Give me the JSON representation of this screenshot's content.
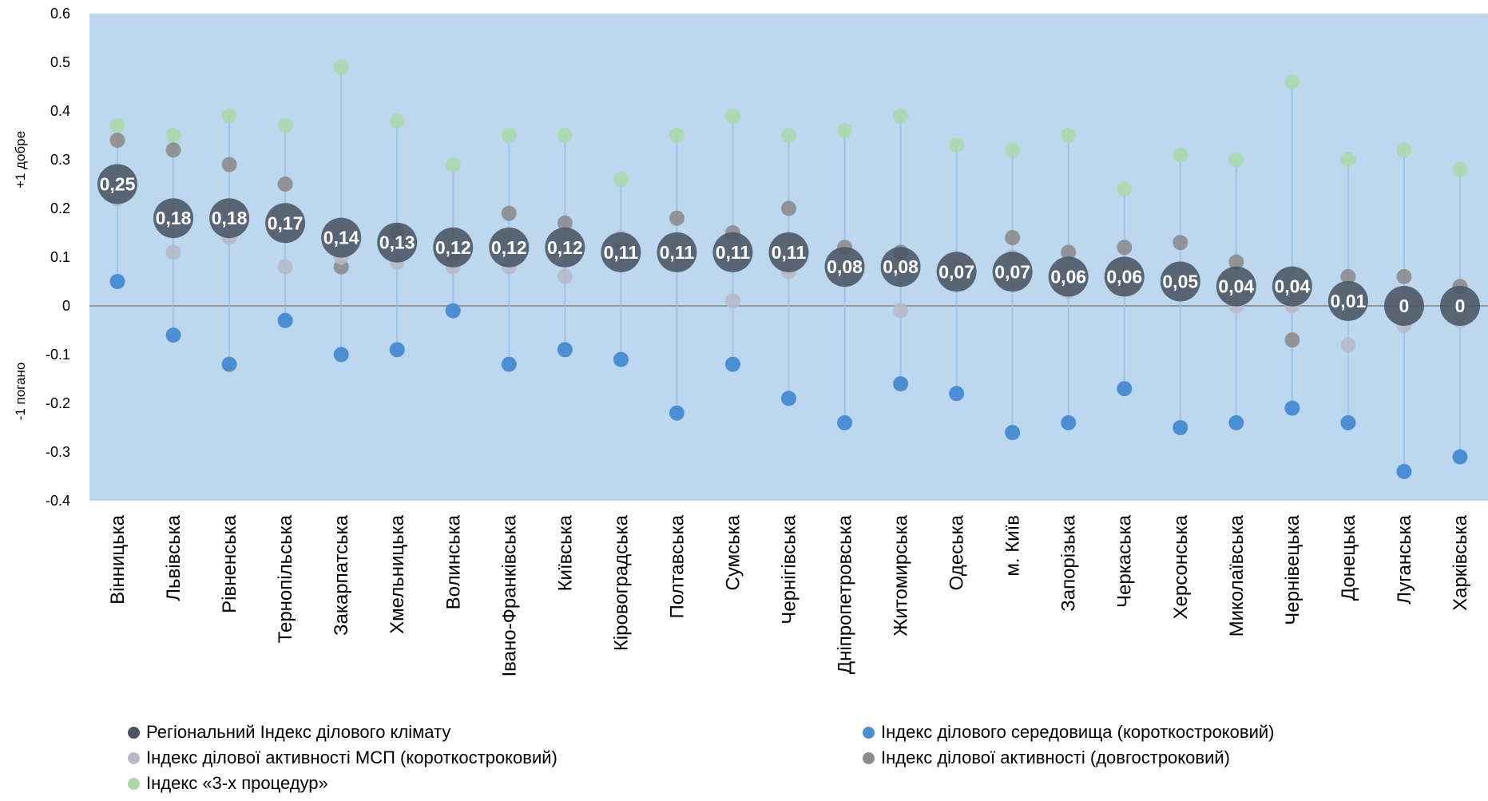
{
  "chart_data": {
    "type": "scatter",
    "title": "",
    "xlabel": "",
    "ylabel_top": "+1 добре",
    "ylabel_bottom": "-1 погано",
    "ylim": [
      -0.4,
      0.6
    ],
    "yticks": [
      -0.4,
      -0.3,
      -0.2,
      -0.1,
      0,
      0.1,
      0.2,
      0.3,
      0.4,
      0.5,
      0.6
    ],
    "ytick_labels": [
      "-0.4",
      "-0.3",
      "-0.2",
      "-0.1",
      "0",
      "0.1",
      "0.2",
      "0.3",
      "0.4",
      "0.5",
      "0.6"
    ],
    "grid": false,
    "legend_position": "bottom",
    "categories": [
      "Вінницька",
      "Львівська",
      "Рівненська",
      "Тернопільська",
      "Закарпатська",
      "Хмельницька",
      "Волинська",
      "Івано-Франківська",
      "Київська",
      "Кіровоградська",
      "Полтавська",
      "Сумська",
      "Чернігівська",
      "Дніпропетровська",
      "Житомирська",
      "Одеська",
      "м. Київ",
      "Запорізька",
      "Черкаська",
      "Херсонська",
      "Миколаївська",
      "Чернівецька",
      "Донецька",
      "Луганська",
      "Харківська"
    ],
    "series": [
      {
        "name": "Індекс «3-х процедур»",
        "color": "#a9d8a8",
        "values": [
          0.37,
          0.35,
          0.39,
          0.37,
          0.49,
          0.38,
          0.29,
          0.35,
          0.35,
          0.26,
          0.35,
          0.39,
          0.35,
          0.36,
          0.39,
          0.33,
          0.32,
          0.35,
          0.24,
          0.31,
          0.3,
          0.46,
          0.3,
          0.32,
          0.28
        ]
      },
      {
        "name": "Індекс ділового середовища (короткостроковий)",
        "color": "#4a8fd4",
        "values": [
          0.05,
          -0.06,
          -0.12,
          -0.03,
          -0.1,
          -0.09,
          -0.01,
          -0.12,
          -0.09,
          -0.11,
          -0.22,
          -0.12,
          -0.19,
          -0.24,
          -0.16,
          -0.18,
          -0.26,
          -0.24,
          -0.17,
          -0.25,
          -0.24,
          -0.21,
          -0.24,
          -0.34,
          -0.31
        ]
      },
      {
        "name": "Індекс ділової активності (довгостроковий)",
        "color": "#8c8c8c",
        "values": [
          0.34,
          0.32,
          0.29,
          0.25,
          0.08,
          0.15,
          0.1,
          0.19,
          0.17,
          0.13,
          0.18,
          0.15,
          0.2,
          0.12,
          0.11,
          0.08,
          0.14,
          0.11,
          0.12,
          0.13,
          0.09,
          -0.07,
          0.06,
          0.06,
          0.04
        ]
      },
      {
        "name": "Індекс ділової активності МСП (короткостроковий)",
        "color": "#b7b9c8",
        "values": [
          0.22,
          0.11,
          0.14,
          0.08,
          0.1,
          0.09,
          0.08,
          0.08,
          0.06,
          0.14,
          0.12,
          0.01,
          0.07,
          0.08,
          -0.01,
          0.08,
          0.1,
          0.03,
          0.05,
          0.03,
          0.0,
          0.0,
          -0.08,
          -0.04,
          -0.03
        ]
      },
      {
        "name": "Регіональний Індекс ділового  клімату",
        "color": "#4a5563",
        "values": [
          0.25,
          0.18,
          0.18,
          0.17,
          0.14,
          0.13,
          0.12,
          0.12,
          0.12,
          0.11,
          0.11,
          0.11,
          0.11,
          0.08,
          0.08,
          0.07,
          0.07,
          0.06,
          0.06,
          0.05,
          0.04,
          0.04,
          0.01,
          0,
          0
        ],
        "labels": [
          "0,25",
          "0,18",
          "0,18",
          "0,17",
          "0,14",
          "0,13",
          "0,12",
          "0,12",
          "0,12",
          "0,11",
          "0,11",
          "0,11",
          "0,11",
          "0,08",
          "0,08",
          "0,07",
          "0,07",
          "0,06",
          "0,06",
          "0,05",
          "0,04",
          "0,04",
          "0,01",
          "0",
          "0"
        ]
      }
    ]
  },
  "legend": {
    "items": [
      {
        "label": "Регіональний Індекс ділового  клімату",
        "color": "#4a5563"
      },
      {
        "label": "Індекс ділового середовища (короткостроковий)",
        "color": "#4a8fd4"
      },
      {
        "label": "Індекс ділової активності МСП (короткостроковий)",
        "color": "#b7b9c8"
      },
      {
        "label": "Індекс ділової активності (довгостроковий)",
        "color": "#8c8c8c"
      },
      {
        "label": "Індекс «3-х процедур»",
        "color": "#a9d8a8"
      }
    ]
  },
  "colors": {
    "plot_background": "#bdd7ee",
    "connector_line": "#9dc3e6",
    "zero_line": "#808080"
  }
}
